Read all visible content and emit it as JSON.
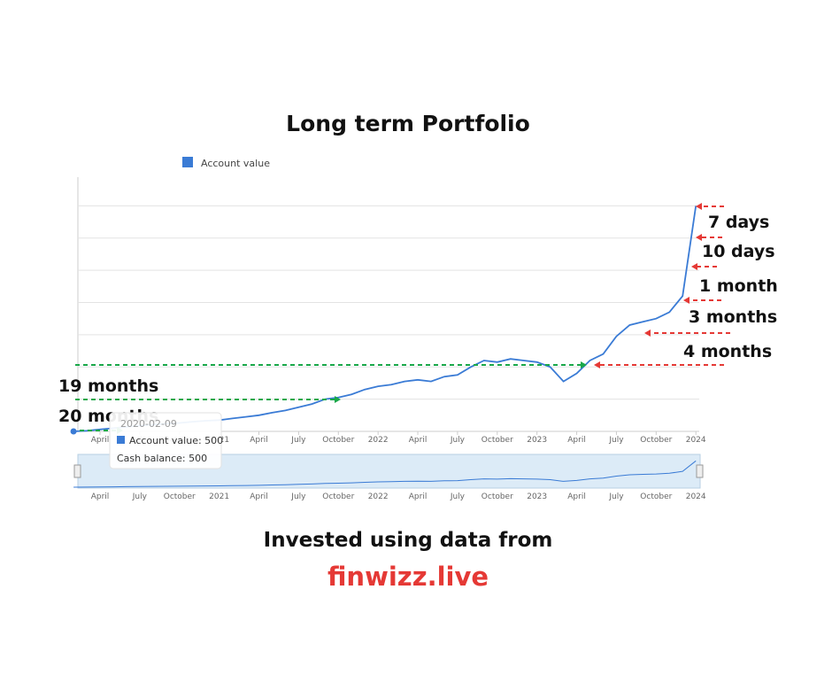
{
  "chart_data": {
    "type": "line",
    "title": "Long term Portfolio",
    "x": [
      "2020-02",
      "2020-03",
      "2020-04",
      "2020-05",
      "2020-06",
      "2020-07",
      "2020-08",
      "2020-09",
      "2020-10",
      "2020-11",
      "2020-12",
      "2021-01",
      "2021-02",
      "2021-03",
      "2021-04",
      "2021-05",
      "2021-06",
      "2021-07",
      "2021-08",
      "2021-09",
      "2021-10",
      "2021-11",
      "2021-12",
      "2022-01",
      "2022-02",
      "2022-03",
      "2022-04",
      "2022-05",
      "2022-06",
      "2022-07",
      "2022-08",
      "2022-09",
      "2022-10",
      "2022-11",
      "2022-12",
      "2023-01",
      "2023-02",
      "2023-03",
      "2023-04",
      "2023-05",
      "2023-06",
      "2023-07",
      "2023-08",
      "2023-09",
      "2023-10",
      "2023-11",
      "2023-12",
      "2024-01"
    ],
    "series": [
      {
        "name": "Account value",
        "color": "#3a7bd5",
        "values": [
          500,
          520,
          560,
          600,
          640,
          680,
          710,
          740,
          760,
          800,
          830,
          850,
          900,
          950,
          1000,
          1080,
          1150,
          1250,
          1350,
          1500,
          1550,
          1650,
          1800,
          1900,
          1950,
          2050,
          2100,
          2050,
          2200,
          2250,
          2500,
          2700,
          2650,
          2750,
          2700,
          2650,
          2500,
          2050,
          2300,
          2700,
          2900,
          3450,
          3800,
          3900,
          4000,
          4200,
          4700,
          7500
        ]
      }
    ],
    "ylim": [
      500,
      8500
    ],
    "ygrid": [
      1500,
      2500,
      3500,
      4500,
      5500,
      6500,
      7500
    ],
    "xticks": [
      {
        "value": "2020-04",
        "label": "April"
      },
      {
        "value": "2020-07",
        "label": "July"
      },
      {
        "value": "2020-10",
        "label": "October"
      },
      {
        "value": "2021-01",
        "label": "2021"
      },
      {
        "value": "2021-04",
        "label": "April"
      },
      {
        "value": "2021-07",
        "label": "July"
      },
      {
        "value": "2021-10",
        "label": "October"
      },
      {
        "value": "2022-01",
        "label": "2022"
      },
      {
        "value": "2022-04",
        "label": "April"
      },
      {
        "value": "2022-07",
        "label": "July"
      },
      {
        "value": "2022-10",
        "label": "October"
      },
      {
        "value": "2023-01",
        "label": "2023"
      },
      {
        "value": "2023-04",
        "label": "April"
      },
      {
        "value": "2023-07",
        "label": "July"
      },
      {
        "value": "2023-10",
        "label": "October"
      },
      {
        "value": "2024-01",
        "label": "2024"
      }
    ],
    "tooltip": {
      "date": "2020-02-09",
      "value": "Account value: 500",
      "cash": "Cash balance: 500"
    },
    "annotations": [
      "7 days",
      "10 days",
      "1 month",
      "3 months",
      "4 months",
      "19 months",
      "20 months"
    ],
    "footer": {
      "line1": "Invested using data from",
      "link": "finwizz.live"
    }
  }
}
